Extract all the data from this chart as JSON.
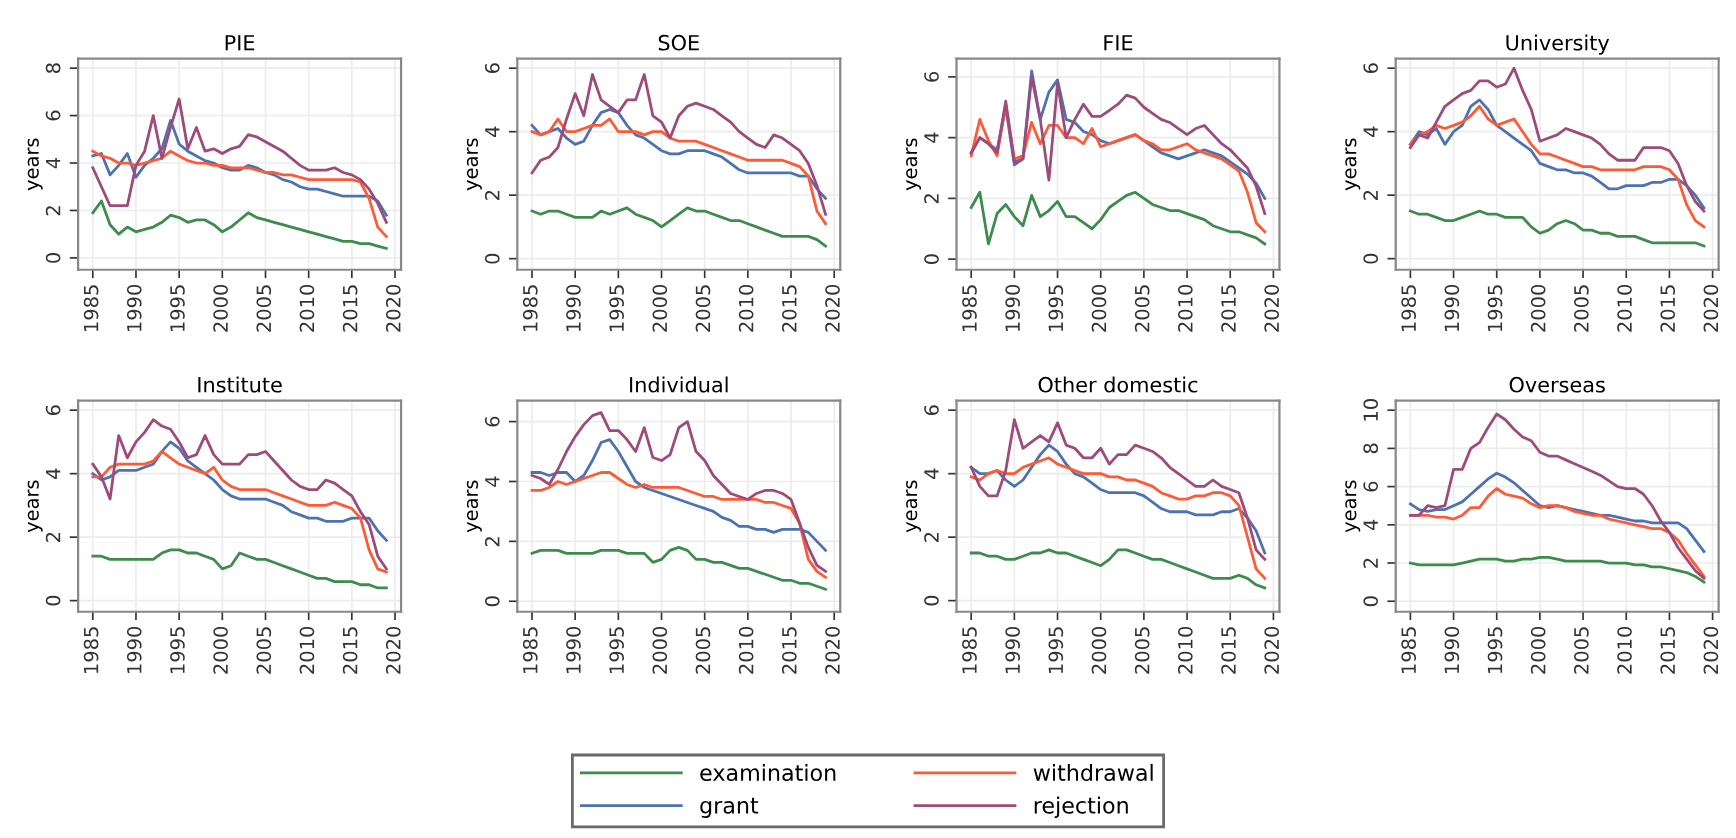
{
  "chart_data": [
    {
      "type": "line",
      "title": "PIE",
      "ylabel": "years",
      "x": [
        1985,
        1986,
        1987,
        1988,
        1989,
        1990,
        1991,
        1992,
        1993,
        1994,
        1995,
        1996,
        1997,
        1998,
        1999,
        2000,
        2001,
        2002,
        2003,
        2004,
        2005,
        2006,
        2007,
        2008,
        2009,
        2010,
        2011,
        2012,
        2013,
        2014,
        2015,
        2016,
        2017,
        2018,
        2019
      ],
      "xlim": [
        1983.3,
        2020.7
      ],
      "xticks": [
        1985,
        1990,
        1995,
        2000,
        2005,
        2010,
        2015,
        2020
      ],
      "ylim": [
        -0.5,
        8.4
      ],
      "yticks": [
        0,
        2,
        4,
        6,
        8
      ],
      "grid": true,
      "legend": "bottom",
      "series": [
        {
          "name": "examination",
          "color": "#3c8c4c",
          "values": [
            1.9,
            2.4,
            1.4,
            1.0,
            1.3,
            1.1,
            1.2,
            1.3,
            1.5,
            1.8,
            1.7,
            1.5,
            1.6,
            1.6,
            1.4,
            1.1,
            1.3,
            1.6,
            1.9,
            1.7,
            1.6,
            1.5,
            1.4,
            1.3,
            1.2,
            1.1,
            1.0,
            0.9,
            0.8,
            0.7,
            0.7,
            0.6,
            0.6,
            0.5,
            0.4
          ]
        },
        {
          "name": "grant",
          "color": "#4c72b0",
          "values": [
            4.3,
            4.4,
            3.5,
            3.9,
            4.4,
            3.4,
            3.9,
            4.2,
            4.6,
            5.8,
            4.8,
            4.5,
            4.3,
            4.1,
            4.0,
            3.8,
            3.7,
            3.7,
            3.9,
            3.8,
            3.6,
            3.5,
            3.3,
            3.2,
            3.0,
            2.9,
            2.9,
            2.8,
            2.7,
            2.6,
            2.6,
            2.6,
            2.6,
            2.4,
            1.8
          ]
        },
        {
          "name": "withdrawal",
          "color": "#ff5a36",
          "values": [
            4.5,
            4.3,
            4.2,
            4.0,
            4.0,
            3.9,
            4.0,
            4.1,
            4.2,
            4.5,
            4.3,
            4.1,
            4.0,
            4.0,
            3.9,
            3.9,
            3.8,
            3.8,
            3.8,
            3.7,
            3.6,
            3.6,
            3.5,
            3.5,
            3.4,
            3.3,
            3.3,
            3.3,
            3.3,
            3.3,
            3.3,
            3.2,
            2.5,
            1.3,
            0.9
          ]
        },
        {
          "name": "rejection",
          "color": "#9e4a7a",
          "values": [
            3.8,
            3.0,
            2.2,
            2.2,
            2.2,
            3.9,
            4.5,
            6.0,
            4.2,
            5.5,
            6.7,
            4.6,
            5.5,
            4.5,
            4.6,
            4.4,
            4.6,
            4.7,
            5.2,
            5.1,
            4.9,
            4.7,
            4.5,
            4.2,
            3.9,
            3.7,
            3.7,
            3.7,
            3.8,
            3.6,
            3.5,
            3.3,
            2.9,
            2.3,
            1.5
          ]
        }
      ]
    },
    {
      "type": "line",
      "title": "SOE",
      "ylabel": "years",
      "x": [
        1985,
        1986,
        1987,
        1988,
        1989,
        1990,
        1991,
        1992,
        1993,
        1994,
        1995,
        1996,
        1997,
        1998,
        1999,
        2000,
        2001,
        2002,
        2003,
        2004,
        2005,
        2006,
        2007,
        2008,
        2009,
        2010,
        2011,
        2012,
        2013,
        2014,
        2015,
        2016,
        2017,
        2018,
        2019
      ],
      "xlim": [
        1983.3,
        2020.7
      ],
      "xticks": [
        1985,
        1990,
        1995,
        2000,
        2005,
        2010,
        2015,
        2020
      ],
      "ylim": [
        -0.35,
        6.3
      ],
      "yticks": [
        0,
        2,
        4,
        6
      ],
      "grid": true,
      "legend": "bottom",
      "series": [
        {
          "name": "examination",
          "color": "#3c8c4c",
          "values": [
            1.5,
            1.4,
            1.5,
            1.5,
            1.4,
            1.3,
            1.3,
            1.3,
            1.5,
            1.4,
            1.5,
            1.6,
            1.4,
            1.3,
            1.2,
            1.0,
            1.2,
            1.4,
            1.6,
            1.5,
            1.5,
            1.4,
            1.3,
            1.2,
            1.2,
            1.1,
            1.0,
            0.9,
            0.8,
            0.7,
            0.7,
            0.7,
            0.7,
            0.6,
            0.4
          ]
        },
        {
          "name": "grant",
          "color": "#4c72b0",
          "values": [
            4.2,
            3.9,
            4.0,
            4.1,
            3.8,
            3.6,
            3.7,
            4.2,
            4.6,
            4.7,
            4.6,
            4.2,
            3.9,
            3.8,
            3.6,
            3.4,
            3.3,
            3.3,
            3.4,
            3.4,
            3.4,
            3.3,
            3.2,
            3.0,
            2.8,
            2.7,
            2.7,
            2.7,
            2.7,
            2.7,
            2.7,
            2.6,
            2.6,
            2.2,
            1.9
          ]
        },
        {
          "name": "withdrawal",
          "color": "#ff5a36",
          "values": [
            4.0,
            3.9,
            4.0,
            4.4,
            4.0,
            4.0,
            4.1,
            4.2,
            4.2,
            4.4,
            4.0,
            4.0,
            4.0,
            3.9,
            4.0,
            4.0,
            3.8,
            3.7,
            3.7,
            3.7,
            3.6,
            3.5,
            3.4,
            3.3,
            3.2,
            3.1,
            3.1,
            3.1,
            3.1,
            3.1,
            3.0,
            2.9,
            2.6,
            1.5,
            1.1
          ]
        },
        {
          "name": "rejection",
          "color": "#9e4a7a",
          "values": [
            2.7,
            3.1,
            3.2,
            3.5,
            4.4,
            5.2,
            4.5,
            5.8,
            5.0,
            4.8,
            4.6,
            5.0,
            5.0,
            5.8,
            4.5,
            4.3,
            3.8,
            4.5,
            4.8,
            4.9,
            4.8,
            4.7,
            4.5,
            4.3,
            4.0,
            3.8,
            3.6,
            3.5,
            3.9,
            3.8,
            3.6,
            3.4,
            3.0,
            2.3,
            1.4
          ]
        }
      ]
    },
    {
      "type": "line",
      "title": "FIE",
      "ylabel": "years",
      "x": [
        1985,
        1986,
        1987,
        1988,
        1989,
        1990,
        1991,
        1992,
        1993,
        1994,
        1995,
        1996,
        1997,
        1998,
        1999,
        2000,
        2001,
        2002,
        2003,
        2004,
        2005,
        2006,
        2007,
        2008,
        2009,
        2010,
        2011,
        2012,
        2013,
        2014,
        2015,
        2016,
        2017,
        2018,
        2019
      ],
      "xlim": [
        1983.3,
        2020.7
      ],
      "xticks": [
        1985,
        1990,
        1995,
        2000,
        2005,
        2010,
        2015,
        2020
      ],
      "ylim": [
        -0.35,
        6.6
      ],
      "yticks": [
        0,
        2,
        4,
        6
      ],
      "grid": true,
      "legend": "bottom",
      "series": [
        {
          "name": "examination",
          "color": "#3c8c4c",
          "values": [
            1.7,
            2.2,
            0.5,
            1.5,
            1.8,
            1.4,
            1.1,
            2.1,
            1.4,
            1.6,
            1.9,
            1.4,
            1.4,
            1.2,
            1.0,
            1.3,
            1.7,
            1.9,
            2.1,
            2.2,
            2.0,
            1.8,
            1.7,
            1.6,
            1.6,
            1.5,
            1.4,
            1.3,
            1.1,
            1.0,
            0.9,
            0.9,
            0.8,
            0.7,
            0.5
          ]
        },
        {
          "name": "grant",
          "color": "#4c72b0",
          "values": [
            3.5,
            4.0,
            3.8,
            3.6,
            5.0,
            3.1,
            3.3,
            6.2,
            4.6,
            5.5,
            5.9,
            4.6,
            4.5,
            4.2,
            4.1,
            3.9,
            3.8,
            3.9,
            4.0,
            4.1,
            3.9,
            3.7,
            3.5,
            3.4,
            3.3,
            3.4,
            3.5,
            3.6,
            3.5,
            3.4,
            3.2,
            3.0,
            2.8,
            2.5,
            2.0
          ]
        },
        {
          "name": "withdrawal",
          "color": "#ff5a36",
          "values": [
            3.4,
            4.6,
            3.9,
            3.4,
            5.1,
            3.3,
            3.4,
            4.5,
            3.8,
            4.4,
            4.4,
            4.0,
            4.0,
            3.8,
            4.3,
            3.7,
            3.8,
            3.9,
            4.0,
            4.1,
            3.9,
            3.8,
            3.6,
            3.6,
            3.7,
            3.8,
            3.6,
            3.5,
            3.4,
            3.3,
            3.1,
            2.9,
            2.2,
            1.2,
            0.9
          ]
        },
        {
          "name": "rejection",
          "color": "#9e4a7a",
          "values": [
            3.5,
            4.0,
            3.8,
            3.5,
            5.2,
            3.2,
            3.3,
            6.0,
            4.6,
            2.6,
            5.8,
            4.0,
            4.6,
            5.1,
            4.7,
            4.7,
            4.9,
            5.1,
            5.4,
            5.3,
            5.0,
            4.8,
            4.6,
            4.5,
            4.3,
            4.1,
            4.3,
            4.4,
            4.1,
            3.8,
            3.6,
            3.3,
            3.0,
            2.4,
            1.5
          ]
        }
      ]
    },
    {
      "type": "line",
      "title": "University",
      "ylabel": "years",
      "x": [
        1985,
        1986,
        1987,
        1988,
        1989,
        1990,
        1991,
        1992,
        1993,
        1994,
        1995,
        1996,
        1997,
        1998,
        1999,
        2000,
        2001,
        2002,
        2003,
        2004,
        2005,
        2006,
        2007,
        2008,
        2009,
        2010,
        2011,
        2012,
        2013,
        2014,
        2015,
        2016,
        2017,
        2018,
        2019
      ],
      "xlim": [
        1983.3,
        2020.7
      ],
      "xticks": [
        1985,
        1990,
        1995,
        2000,
        2005,
        2010,
        2015,
        2020
      ],
      "ylim": [
        -0.35,
        6.3
      ],
      "yticks": [
        0,
        2,
        4,
        6
      ],
      "grid": true,
      "legend": "bottom",
      "series": [
        {
          "name": "examination",
          "color": "#3c8c4c",
          "values": [
            1.5,
            1.4,
            1.4,
            1.3,
            1.2,
            1.2,
            1.3,
            1.4,
            1.5,
            1.4,
            1.4,
            1.3,
            1.3,
            1.3,
            1.0,
            0.8,
            0.9,
            1.1,
            1.2,
            1.1,
            0.9,
            0.9,
            0.8,
            0.8,
            0.7,
            0.7,
            0.7,
            0.6,
            0.5,
            0.5,
            0.5,
            0.5,
            0.5,
            0.5,
            0.4
          ]
        },
        {
          "name": "grant",
          "color": "#4c72b0",
          "values": [
            3.6,
            4.0,
            3.9,
            4.1,
            3.6,
            4.0,
            4.2,
            4.8,
            5.0,
            4.7,
            4.2,
            4.0,
            3.8,
            3.6,
            3.4,
            3.0,
            2.9,
            2.8,
            2.8,
            2.7,
            2.7,
            2.6,
            2.4,
            2.2,
            2.2,
            2.3,
            2.3,
            2.3,
            2.4,
            2.4,
            2.5,
            2.5,
            2.3,
            2.0,
            1.6
          ]
        },
        {
          "name": "withdrawal",
          "color": "#ff5a36",
          "values": [
            3.6,
            3.9,
            4.0,
            4.2,
            4.1,
            4.2,
            4.3,
            4.5,
            4.8,
            4.4,
            4.2,
            4.3,
            4.4,
            4.0,
            3.6,
            3.3,
            3.3,
            3.2,
            3.1,
            3.0,
            2.9,
            2.9,
            2.8,
            2.8,
            2.8,
            2.8,
            2.8,
            2.9,
            2.9,
            2.9,
            2.8,
            2.5,
            1.7,
            1.2,
            1.0
          ]
        },
        {
          "name": "rejection",
          "color": "#9e4a7a",
          "values": [
            3.5,
            3.9,
            3.8,
            4.3,
            4.8,
            5.0,
            5.2,
            5.3,
            5.6,
            5.6,
            5.4,
            5.5,
            6.0,
            5.3,
            4.7,
            3.7,
            3.8,
            3.9,
            4.1,
            4.0,
            3.9,
            3.8,
            3.6,
            3.3,
            3.1,
            3.1,
            3.1,
            3.5,
            3.5,
            3.5,
            3.4,
            3.0,
            2.3,
            1.8,
            1.5
          ]
        }
      ]
    },
    {
      "type": "line",
      "title": "Institute",
      "ylabel": "years",
      "x": [
        1985,
        1986,
        1987,
        1988,
        1989,
        1990,
        1991,
        1992,
        1993,
        1994,
        1995,
        1996,
        1997,
        1998,
        1999,
        2000,
        2001,
        2002,
        2003,
        2004,
        2005,
        2006,
        2007,
        2008,
        2009,
        2010,
        2011,
        2012,
        2013,
        2014,
        2015,
        2016,
        2017,
        2018,
        2019
      ],
      "xlim": [
        1983.3,
        2020.7
      ],
      "xticks": [
        1985,
        1990,
        1995,
        2000,
        2005,
        2010,
        2015,
        2020
      ],
      "ylim": [
        -0.35,
        6.3
      ],
      "yticks": [
        0,
        2,
        4,
        6
      ],
      "grid": true,
      "legend": "bottom",
      "series": [
        {
          "name": "examination",
          "color": "#3c8c4c",
          "values": [
            1.4,
            1.4,
            1.3,
            1.3,
            1.3,
            1.3,
            1.3,
            1.3,
            1.5,
            1.6,
            1.6,
            1.5,
            1.5,
            1.4,
            1.3,
            1.0,
            1.1,
            1.5,
            1.4,
            1.3,
            1.3,
            1.2,
            1.1,
            1.0,
            0.9,
            0.8,
            0.7,
            0.7,
            0.6,
            0.6,
            0.6,
            0.5,
            0.5,
            0.4,
            0.4
          ]
        },
        {
          "name": "grant",
          "color": "#4c72b0",
          "values": [
            4.0,
            3.8,
            3.9,
            4.1,
            4.1,
            4.1,
            4.2,
            4.3,
            4.7,
            5.0,
            4.8,
            4.4,
            4.2,
            4.0,
            3.8,
            3.5,
            3.3,
            3.2,
            3.2,
            3.2,
            3.2,
            3.1,
            3.0,
            2.8,
            2.7,
            2.6,
            2.6,
            2.5,
            2.5,
            2.5,
            2.6,
            2.6,
            2.6,
            2.2,
            1.9
          ]
        },
        {
          "name": "withdrawal",
          "color": "#ff5a36",
          "values": [
            3.9,
            3.9,
            4.2,
            4.3,
            4.3,
            4.3,
            4.3,
            4.4,
            4.7,
            4.5,
            4.3,
            4.2,
            4.1,
            4.0,
            4.2,
            3.8,
            3.6,
            3.5,
            3.5,
            3.5,
            3.5,
            3.4,
            3.3,
            3.2,
            3.1,
            3.0,
            3.0,
            3.0,
            3.1,
            3.0,
            2.9,
            2.6,
            1.6,
            1.0,
            0.9
          ]
        },
        {
          "name": "rejection",
          "color": "#9e4a7a",
          "values": [
            4.3,
            3.9,
            3.2,
            5.2,
            4.5,
            5.0,
            5.3,
            5.7,
            5.5,
            5.4,
            5.0,
            4.5,
            4.6,
            5.2,
            4.6,
            4.3,
            4.3,
            4.3,
            4.6,
            4.6,
            4.7,
            4.4,
            4.1,
            3.8,
            3.6,
            3.5,
            3.5,
            3.8,
            3.7,
            3.5,
            3.3,
            2.8,
            2.4,
            1.4,
            1.0
          ]
        }
      ]
    },
    {
      "type": "line",
      "title": "Individual",
      "ylabel": "years",
      "x": [
        1985,
        1986,
        1987,
        1988,
        1989,
        1990,
        1991,
        1992,
        1993,
        1994,
        1995,
        1996,
        1997,
        1998,
        1999,
        2000,
        2001,
        2002,
        2003,
        2004,
        2005,
        2006,
        2007,
        2008,
        2009,
        2010,
        2011,
        2012,
        2013,
        2014,
        2015,
        2016,
        2017,
        2018,
        2019
      ],
      "xlim": [
        1983.3,
        2020.7
      ],
      "xticks": [
        1985,
        1990,
        1995,
        2000,
        2005,
        2010,
        2015,
        2020
      ],
      "ylim": [
        -0.35,
        6.7
      ],
      "yticks": [
        0,
        2,
        4,
        6
      ],
      "grid": true,
      "legend": "bottom",
      "series": [
        {
          "name": "examination",
          "color": "#3c8c4c",
          "values": [
            1.6,
            1.7,
            1.7,
            1.7,
            1.6,
            1.6,
            1.6,
            1.6,
            1.7,
            1.7,
            1.7,
            1.6,
            1.6,
            1.6,
            1.3,
            1.4,
            1.7,
            1.8,
            1.7,
            1.4,
            1.4,
            1.3,
            1.3,
            1.2,
            1.1,
            1.1,
            1.0,
            0.9,
            0.8,
            0.7,
            0.7,
            0.6,
            0.6,
            0.5,
            0.4
          ]
        },
        {
          "name": "grant",
          "color": "#4c72b0",
          "values": [
            4.3,
            4.3,
            4.2,
            4.3,
            4.3,
            4.0,
            4.2,
            4.7,
            5.3,
            5.4,
            5.0,
            4.5,
            4.0,
            3.8,
            3.7,
            3.6,
            3.5,
            3.4,
            3.3,
            3.2,
            3.1,
            3.0,
            2.8,
            2.7,
            2.5,
            2.5,
            2.4,
            2.4,
            2.3,
            2.4,
            2.4,
            2.4,
            2.3,
            2.0,
            1.7
          ]
        },
        {
          "name": "withdrawal",
          "color": "#ff5a36",
          "values": [
            3.7,
            3.7,
            3.8,
            4.0,
            3.9,
            4.0,
            4.1,
            4.2,
            4.3,
            4.3,
            4.1,
            3.9,
            3.8,
            3.9,
            3.8,
            3.8,
            3.8,
            3.8,
            3.7,
            3.6,
            3.5,
            3.5,
            3.4,
            3.4,
            3.4,
            3.4,
            3.4,
            3.3,
            3.3,
            3.2,
            3.1,
            2.6,
            1.4,
            1.0,
            0.8
          ]
        },
        {
          "name": "rejection",
          "color": "#9e4a7a",
          "values": [
            4.2,
            4.1,
            3.9,
            4.4,
            5.0,
            5.5,
            5.9,
            6.2,
            6.3,
            5.7,
            5.7,
            5.4,
            5.0,
            5.8,
            4.8,
            4.7,
            4.9,
            5.8,
            6.0,
            5.0,
            4.7,
            4.2,
            3.9,
            3.6,
            3.5,
            3.4,
            3.6,
            3.7,
            3.7,
            3.6,
            3.4,
            2.6,
            1.8,
            1.2,
            1.0
          ]
        }
      ]
    },
    {
      "type": "line",
      "title": "Other domestic",
      "ylabel": "years",
      "x": [
        1985,
        1986,
        1987,
        1988,
        1989,
        1990,
        1991,
        1992,
        1993,
        1994,
        1995,
        1996,
        1997,
        1998,
        1999,
        2000,
        2001,
        2002,
        2003,
        2004,
        2005,
        2006,
        2007,
        2008,
        2009,
        2010,
        2011,
        2012,
        2013,
        2014,
        2015,
        2016,
        2017,
        2018,
        2019
      ],
      "xlim": [
        1983.3,
        2020.7
      ],
      "xticks": [
        1985,
        1990,
        1995,
        2000,
        2005,
        2010,
        2015,
        2020
      ],
      "ylim": [
        -0.35,
        6.3
      ],
      "yticks": [
        0,
        2,
        4,
        6
      ],
      "grid": true,
      "legend": "bottom",
      "series": [
        {
          "name": "examination",
          "color": "#3c8c4c",
          "values": [
            1.5,
            1.5,
            1.4,
            1.4,
            1.3,
            1.3,
            1.4,
            1.5,
            1.5,
            1.6,
            1.5,
            1.5,
            1.4,
            1.3,
            1.2,
            1.1,
            1.3,
            1.6,
            1.6,
            1.5,
            1.4,
            1.3,
            1.3,
            1.2,
            1.1,
            1.0,
            0.9,
            0.8,
            0.7,
            0.7,
            0.7,
            0.8,
            0.7,
            0.5,
            0.4
          ]
        },
        {
          "name": "grant",
          "color": "#4c72b0",
          "values": [
            4.2,
            4.0,
            4.0,
            4.1,
            3.8,
            3.6,
            3.8,
            4.2,
            4.6,
            4.9,
            4.7,
            4.3,
            4.0,
            3.9,
            3.7,
            3.5,
            3.4,
            3.4,
            3.4,
            3.4,
            3.3,
            3.1,
            2.9,
            2.8,
            2.8,
            2.8,
            2.7,
            2.7,
            2.7,
            2.8,
            2.8,
            2.9,
            2.6,
            2.2,
            1.5
          ]
        },
        {
          "name": "withdrawal",
          "color": "#ff5a36",
          "values": [
            3.9,
            3.8,
            4.0,
            4.1,
            4.0,
            4.0,
            4.2,
            4.3,
            4.4,
            4.5,
            4.3,
            4.2,
            4.1,
            4.0,
            4.0,
            4.0,
            3.9,
            3.9,
            3.8,
            3.8,
            3.7,
            3.6,
            3.4,
            3.3,
            3.2,
            3.2,
            3.3,
            3.3,
            3.4,
            3.4,
            3.3,
            3.0,
            2.0,
            1.0,
            0.7
          ]
        },
        {
          "name": "rejection",
          "color": "#9e4a7a",
          "values": [
            4.2,
            3.6,
            3.3,
            3.3,
            4.1,
            5.7,
            4.8,
            5.0,
            5.2,
            5.0,
            5.6,
            4.9,
            4.8,
            4.5,
            4.5,
            4.8,
            4.3,
            4.6,
            4.6,
            4.9,
            4.8,
            4.7,
            4.5,
            4.2,
            4.0,
            3.8,
            3.6,
            3.6,
            3.8,
            3.6,
            3.5,
            3.4,
            2.6,
            1.6,
            1.3
          ]
        }
      ]
    },
    {
      "type": "line",
      "title": "Overseas",
      "ylabel": "years",
      "x": [
        1985,
        1986,
        1987,
        1988,
        1989,
        1990,
        1991,
        1992,
        1993,
        1994,
        1995,
        1996,
        1997,
        1998,
        1999,
        2000,
        2001,
        2002,
        2003,
        2004,
        2005,
        2006,
        2007,
        2008,
        2009,
        2010,
        2011,
        2012,
        2013,
        2014,
        2015,
        2016,
        2017,
        2018,
        2019
      ],
      "xlim": [
        1983.3,
        2020.7
      ],
      "xticks": [
        1985,
        1990,
        1995,
        2000,
        2005,
        2010,
        2015,
        2020
      ],
      "ylim": [
        -0.55,
        10.5
      ],
      "yticks": [
        0,
        2,
        4,
        6,
        8,
        10
      ],
      "grid": true,
      "legend": "bottom",
      "series": [
        {
          "name": "examination",
          "color": "#3c8c4c",
          "values": [
            2.0,
            1.9,
            1.9,
            1.9,
            1.9,
            1.9,
            2.0,
            2.1,
            2.2,
            2.2,
            2.2,
            2.1,
            2.1,
            2.2,
            2.2,
            2.3,
            2.3,
            2.2,
            2.1,
            2.1,
            2.1,
            2.1,
            2.1,
            2.0,
            2.0,
            2.0,
            1.9,
            1.9,
            1.8,
            1.8,
            1.7,
            1.6,
            1.5,
            1.3,
            1.0
          ]
        },
        {
          "name": "grant",
          "color": "#4c72b0",
          "values": [
            5.1,
            4.8,
            4.7,
            4.8,
            4.8,
            5.0,
            5.2,
            5.6,
            6.0,
            6.4,
            6.7,
            6.5,
            6.2,
            5.8,
            5.4,
            5.0,
            4.9,
            5.0,
            4.9,
            4.8,
            4.7,
            4.6,
            4.5,
            4.5,
            4.4,
            4.3,
            4.2,
            4.2,
            4.1,
            4.1,
            4.1,
            4.1,
            3.8,
            3.2,
            2.6
          ]
        },
        {
          "name": "withdrawal",
          "color": "#ff5a36",
          "values": [
            4.5,
            4.5,
            4.5,
            4.4,
            4.4,
            4.3,
            4.5,
            4.9,
            4.9,
            5.5,
            5.9,
            5.6,
            5.5,
            5.4,
            5.1,
            4.9,
            5.0,
            5.0,
            4.9,
            4.7,
            4.6,
            4.5,
            4.5,
            4.3,
            4.2,
            4.1,
            4.0,
            3.9,
            3.8,
            3.8,
            3.6,
            3.2,
            2.5,
            1.9,
            1.3
          ]
        },
        {
          "name": "rejection",
          "color": "#9e4a7a",
          "values": [
            4.5,
            4.5,
            5.0,
            4.9,
            5.0,
            6.9,
            6.9,
            8.0,
            8.3,
            9.1,
            9.8,
            9.5,
            9.0,
            8.6,
            8.4,
            7.8,
            7.6,
            7.6,
            7.4,
            7.2,
            7.0,
            6.8,
            6.6,
            6.3,
            6.0,
            5.9,
            5.9,
            5.6,
            5.0,
            4.2,
            3.6,
            2.8,
            2.2,
            1.6,
            1.2
          ]
        }
      ]
    }
  ]
}
